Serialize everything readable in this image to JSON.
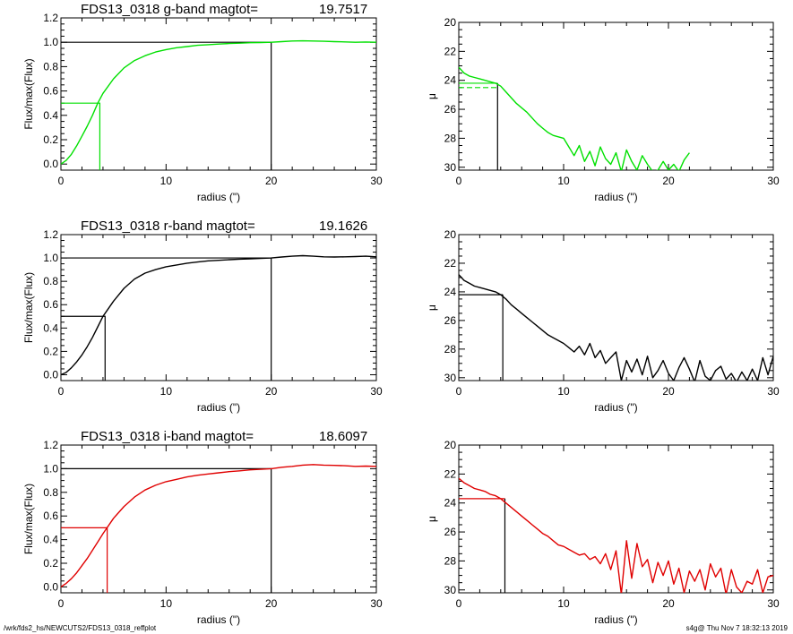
{
  "footer": {
    "left": "/wrk/fds2_hs/NEWCUTS2/FDS13_0318_reffplot",
    "right": "s4g@  Thu Nov  7 18:32:13 2019"
  },
  "colors": {
    "g": "#00e000",
    "r": "#000000",
    "i": "#e00000",
    "axis": "#000000"
  },
  "chart_data": [
    {
      "type": "line",
      "band": "g",
      "color": "#00e000",
      "title": "FDS13_0318 g-band  magtot=",
      "magtot": "19.7517",
      "xlabel": "radius (\")",
      "ylabel": "Flux/max(Flux)",
      "xlim": [
        0,
        30
      ],
      "ylim": [
        -0.05,
        1.2
      ],
      "xticks": [
        0,
        10,
        20,
        30
      ],
      "yticks": [
        0.0,
        0.2,
        0.4,
        0.6,
        0.8,
        1.0,
        1.2
      ],
      "series": [
        {
          "x": [
            0,
            0.5,
            1,
            1.5,
            2,
            2.5,
            3,
            3.5,
            4,
            5,
            6,
            7,
            8,
            9,
            10,
            11,
            12,
            13,
            14,
            15,
            16,
            17,
            18,
            19,
            20,
            21,
            22,
            23,
            24,
            25,
            26,
            27,
            28,
            29,
            30
          ],
          "y": [
            0,
            0.03,
            0.08,
            0.15,
            0.23,
            0.31,
            0.4,
            0.5,
            0.58,
            0.7,
            0.79,
            0.85,
            0.89,
            0.92,
            0.94,
            0.955,
            0.965,
            0.975,
            0.98,
            0.985,
            0.99,
            0.993,
            0.996,
            0.998,
            1.0,
            1.005,
            1.01,
            1.012,
            1.01,
            1.008,
            1.005,
            1.003,
            1.0,
            1.002,
            1.0
          ]
        }
      ],
      "half_light_radius": 3.7,
      "total_radius": 20
    },
    {
      "type": "line",
      "band": "g",
      "color": "#00e000",
      "xlabel": "radius (\")",
      "ylabel": "μ",
      "xlim": [
        0,
        30
      ],
      "ylim": [
        30.2,
        20
      ],
      "y_inverted": true,
      "xticks": [
        0,
        10,
        20,
        30
      ],
      "yticks": [
        20,
        22,
        24,
        26,
        28,
        30
      ],
      "series": [
        {
          "x": [
            0,
            0.5,
            1,
            1.5,
            2,
            2.5,
            3,
            3.5,
            4,
            4.5,
            5,
            5.5,
            6,
            6.5,
            7,
            7.5,
            8,
            8.5,
            9,
            9.5,
            10,
            10.5,
            11,
            11.5,
            12,
            12.5,
            13,
            13.5,
            14,
            14.5,
            15,
            15.5,
            16,
            16.5,
            17,
            17.5,
            18,
            18.5,
            19,
            19.5,
            20,
            20.5,
            21,
            21.5,
            22
          ],
          "y": [
            23.1,
            23.5,
            23.7,
            23.8,
            23.9,
            24.0,
            24.1,
            24.2,
            24.4,
            24.8,
            25.2,
            25.6,
            25.9,
            26.2,
            26.6,
            27.0,
            27.3,
            27.6,
            27.8,
            27.9,
            28.0,
            28.6,
            29.2,
            28.5,
            29.6,
            28.9,
            29.9,
            28.6,
            29.4,
            29.8,
            29.0,
            30.3,
            28.8,
            29.6,
            30.2,
            29.2,
            29.8,
            30.3,
            30.2,
            29.6,
            30.2,
            29.8,
            30.3,
            29.5,
            29.0
          ]
        }
      ],
      "hline_solid": 24.2,
      "hline_dashed": 24.5,
      "vline": 3.7
    },
    {
      "type": "line",
      "band": "r",
      "color": "#000000",
      "title": "FDS13_0318 r-band  magtot=",
      "magtot": "19.1626",
      "xlabel": "radius (\")",
      "ylabel": "Flux/max(Flux)",
      "xlim": [
        0,
        30
      ],
      "ylim": [
        -0.05,
        1.2
      ],
      "xticks": [
        0,
        10,
        20,
        30
      ],
      "yticks": [
        0.0,
        0.2,
        0.4,
        0.6,
        0.8,
        1.0,
        1.2
      ],
      "series": [
        {
          "x": [
            0,
            0.5,
            1,
            1.5,
            2,
            2.5,
            3,
            3.5,
            4,
            5,
            6,
            7,
            8,
            9,
            10,
            11,
            12,
            13,
            14,
            15,
            16,
            17,
            18,
            19,
            20,
            21,
            22,
            23,
            24,
            25,
            26,
            27,
            28,
            29,
            30
          ],
          "y": [
            0,
            0.02,
            0.06,
            0.11,
            0.17,
            0.24,
            0.32,
            0.41,
            0.5,
            0.63,
            0.74,
            0.82,
            0.87,
            0.9,
            0.925,
            0.94,
            0.955,
            0.965,
            0.975,
            0.98,
            0.985,
            0.99,
            0.993,
            0.996,
            1.0,
            1.008,
            1.015,
            1.02,
            1.015,
            1.01,
            1.008,
            1.01,
            1.012,
            1.015,
            1.01
          ]
        }
      ],
      "half_light_radius": 4.2,
      "total_radius": 20
    },
    {
      "type": "line",
      "band": "r",
      "color": "#000000",
      "xlabel": "radius (\")",
      "ylabel": "μ",
      "xlim": [
        0,
        30
      ],
      "ylim": [
        30.2,
        20
      ],
      "y_inverted": true,
      "xticks": [
        0,
        10,
        20,
        30
      ],
      "yticks": [
        20,
        22,
        24,
        26,
        28,
        30
      ],
      "series": [
        {
          "x": [
            0,
            0.5,
            1,
            1.5,
            2,
            2.5,
            3,
            3.5,
            4,
            4.5,
            5,
            5.5,
            6,
            6.5,
            7,
            7.5,
            8,
            8.5,
            9,
            9.5,
            10,
            10.5,
            11,
            11.5,
            12,
            12.5,
            13,
            13.5,
            14,
            14.5,
            15,
            15.5,
            16,
            16.5,
            17,
            17.5,
            18,
            18.5,
            19,
            19.5,
            20,
            20.5,
            21,
            21.5,
            22,
            22.5,
            23,
            23.5,
            24,
            24.5,
            25,
            25.5,
            26,
            26.5,
            27,
            27.5,
            28,
            28.5,
            29,
            29.5,
            30
          ],
          "y": [
            22.8,
            23.2,
            23.4,
            23.6,
            23.7,
            23.8,
            23.9,
            24.0,
            24.2,
            24.5,
            24.9,
            25.2,
            25.5,
            25.8,
            26.1,
            26.4,
            26.7,
            27.0,
            27.2,
            27.4,
            27.6,
            27.9,
            28.2,
            27.8,
            28.4,
            27.6,
            28.6,
            28.1,
            29.0,
            28.6,
            28.2,
            30.2,
            28.8,
            29.6,
            28.7,
            29.8,
            28.5,
            30.0,
            29.5,
            28.8,
            29.7,
            30.2,
            29.3,
            28.6,
            29.4,
            30.3,
            28.8,
            29.9,
            30.2,
            29.5,
            29.2,
            30.1,
            29.7,
            30.3,
            29.6,
            30.2,
            29.4,
            30.2,
            28.6,
            29.8,
            28.5
          ]
        }
      ],
      "hline_solid": 24.2,
      "vline": 4.2
    },
    {
      "type": "line",
      "band": "i",
      "color": "#e00000",
      "title": "FDS13_0318 i-band  magtot=",
      "magtot": "18.6097",
      "xlabel": "radius (\")",
      "ylabel": "Flux/max(Flux)",
      "xlim": [
        0,
        30
      ],
      "ylim": [
        -0.05,
        1.2
      ],
      "xticks": [
        0,
        10,
        20,
        30
      ],
      "yticks": [
        0.0,
        0.2,
        0.4,
        0.6,
        0.8,
        1.0,
        1.2
      ],
      "series": [
        {
          "x": [
            0,
            0.5,
            1,
            1.5,
            2,
            2.5,
            3,
            3.5,
            4,
            5,
            6,
            7,
            8,
            9,
            10,
            11,
            12,
            13,
            14,
            15,
            16,
            17,
            18,
            19,
            20,
            21,
            22,
            23,
            24,
            25,
            26,
            27,
            28,
            29,
            30
          ],
          "y": [
            0,
            0.03,
            0.07,
            0.12,
            0.18,
            0.24,
            0.31,
            0.38,
            0.45,
            0.58,
            0.68,
            0.76,
            0.82,
            0.86,
            0.89,
            0.91,
            0.93,
            0.945,
            0.955,
            0.965,
            0.975,
            0.982,
            0.99,
            0.995,
            1.0,
            1.012,
            1.02,
            1.03,
            1.035,
            1.03,
            1.028,
            1.025,
            1.02,
            1.022,
            1.02
          ]
        }
      ],
      "half_light_radius": 4.4,
      "total_radius": 20
    },
    {
      "type": "line",
      "band": "i",
      "color": "#e00000",
      "xlabel": "radius (\")",
      "ylabel": "μ",
      "xlim": [
        0,
        30
      ],
      "ylim": [
        30.2,
        20
      ],
      "y_inverted": true,
      "xticks": [
        0,
        10,
        20,
        30
      ],
      "yticks": [
        20,
        22,
        24,
        26,
        28,
        30
      ],
      "series": [
        {
          "x": [
            0,
            0.5,
            1,
            1.5,
            2,
            2.5,
            3,
            3.5,
            4,
            4.5,
            5,
            5.5,
            6,
            6.5,
            7,
            7.5,
            8,
            8.5,
            9,
            9.5,
            10,
            10.5,
            11,
            11.5,
            12,
            12.5,
            13,
            13.5,
            14,
            14.5,
            15,
            15.5,
            16,
            16.5,
            17,
            17.5,
            18,
            18.5,
            19,
            19.5,
            20,
            20.5,
            21,
            21.5,
            22,
            22.5,
            23,
            23.5,
            24,
            24.5,
            25,
            25.5,
            26,
            26.5,
            27,
            27.5,
            28,
            28.5,
            29,
            29.5,
            30
          ],
          "y": [
            22.3,
            22.6,
            22.8,
            23.0,
            23.1,
            23.2,
            23.4,
            23.5,
            23.7,
            24.0,
            24.3,
            24.6,
            24.9,
            25.2,
            25.5,
            25.8,
            26.1,
            26.3,
            26.6,
            26.9,
            27.0,
            27.2,
            27.4,
            27.6,
            27.5,
            27.9,
            27.7,
            28.2,
            27.5,
            28.6,
            27.3,
            30.3,
            26.6,
            29.2,
            26.8,
            28.4,
            27.9,
            29.5,
            28.1,
            29.0,
            28.0,
            29.6,
            28.5,
            30.2,
            28.7,
            29.4,
            28.6,
            30.0,
            28.2,
            29.1,
            28.5,
            30.3,
            28.6,
            29.8,
            30.2,
            29.4,
            29.6,
            28.6,
            30.2,
            29.1,
            29.0
          ]
        }
      ],
      "hline_solid": 23.7,
      "vline": 4.4
    }
  ]
}
